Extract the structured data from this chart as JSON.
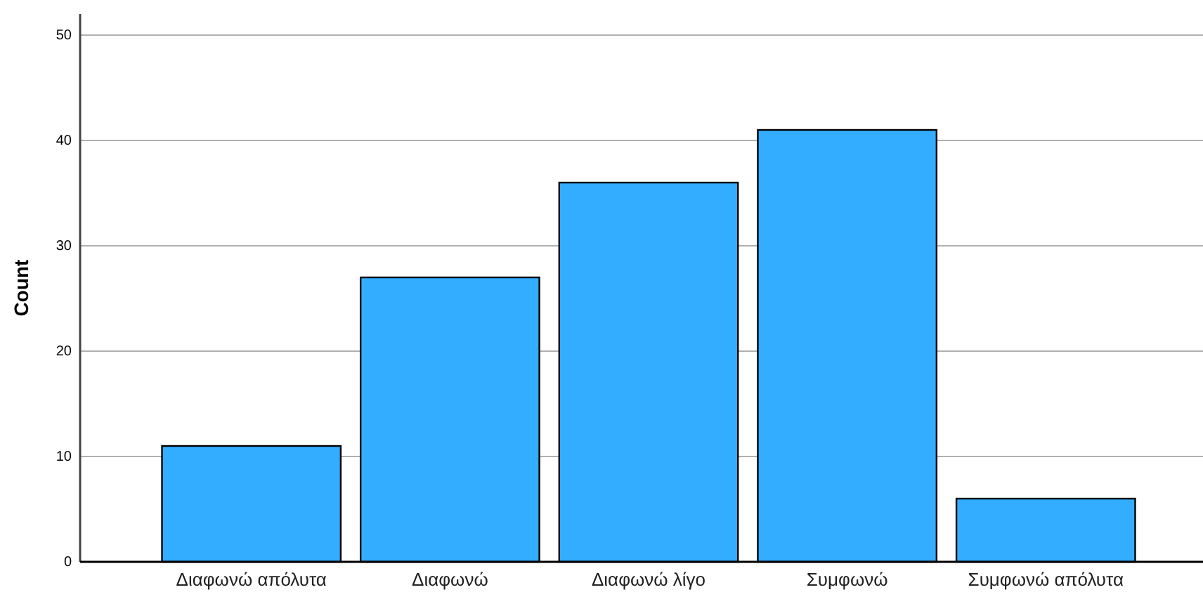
{
  "chart_data": {
    "type": "bar",
    "ylabel": "Count",
    "categories": [
      "Διαφωνώ απόλυτα",
      "Διαφωνώ",
      "Διαφωνώ λίγο",
      "Συμφωνώ",
      "Συμφωνώ απόλυτα"
    ],
    "values": [
      11,
      27,
      36,
      41,
      6
    ],
    "color": "#33adff",
    "ylim": [
      0,
      52
    ],
    "yticks": [
      0,
      10,
      20,
      30,
      40,
      50
    ],
    "grid": "y"
  }
}
